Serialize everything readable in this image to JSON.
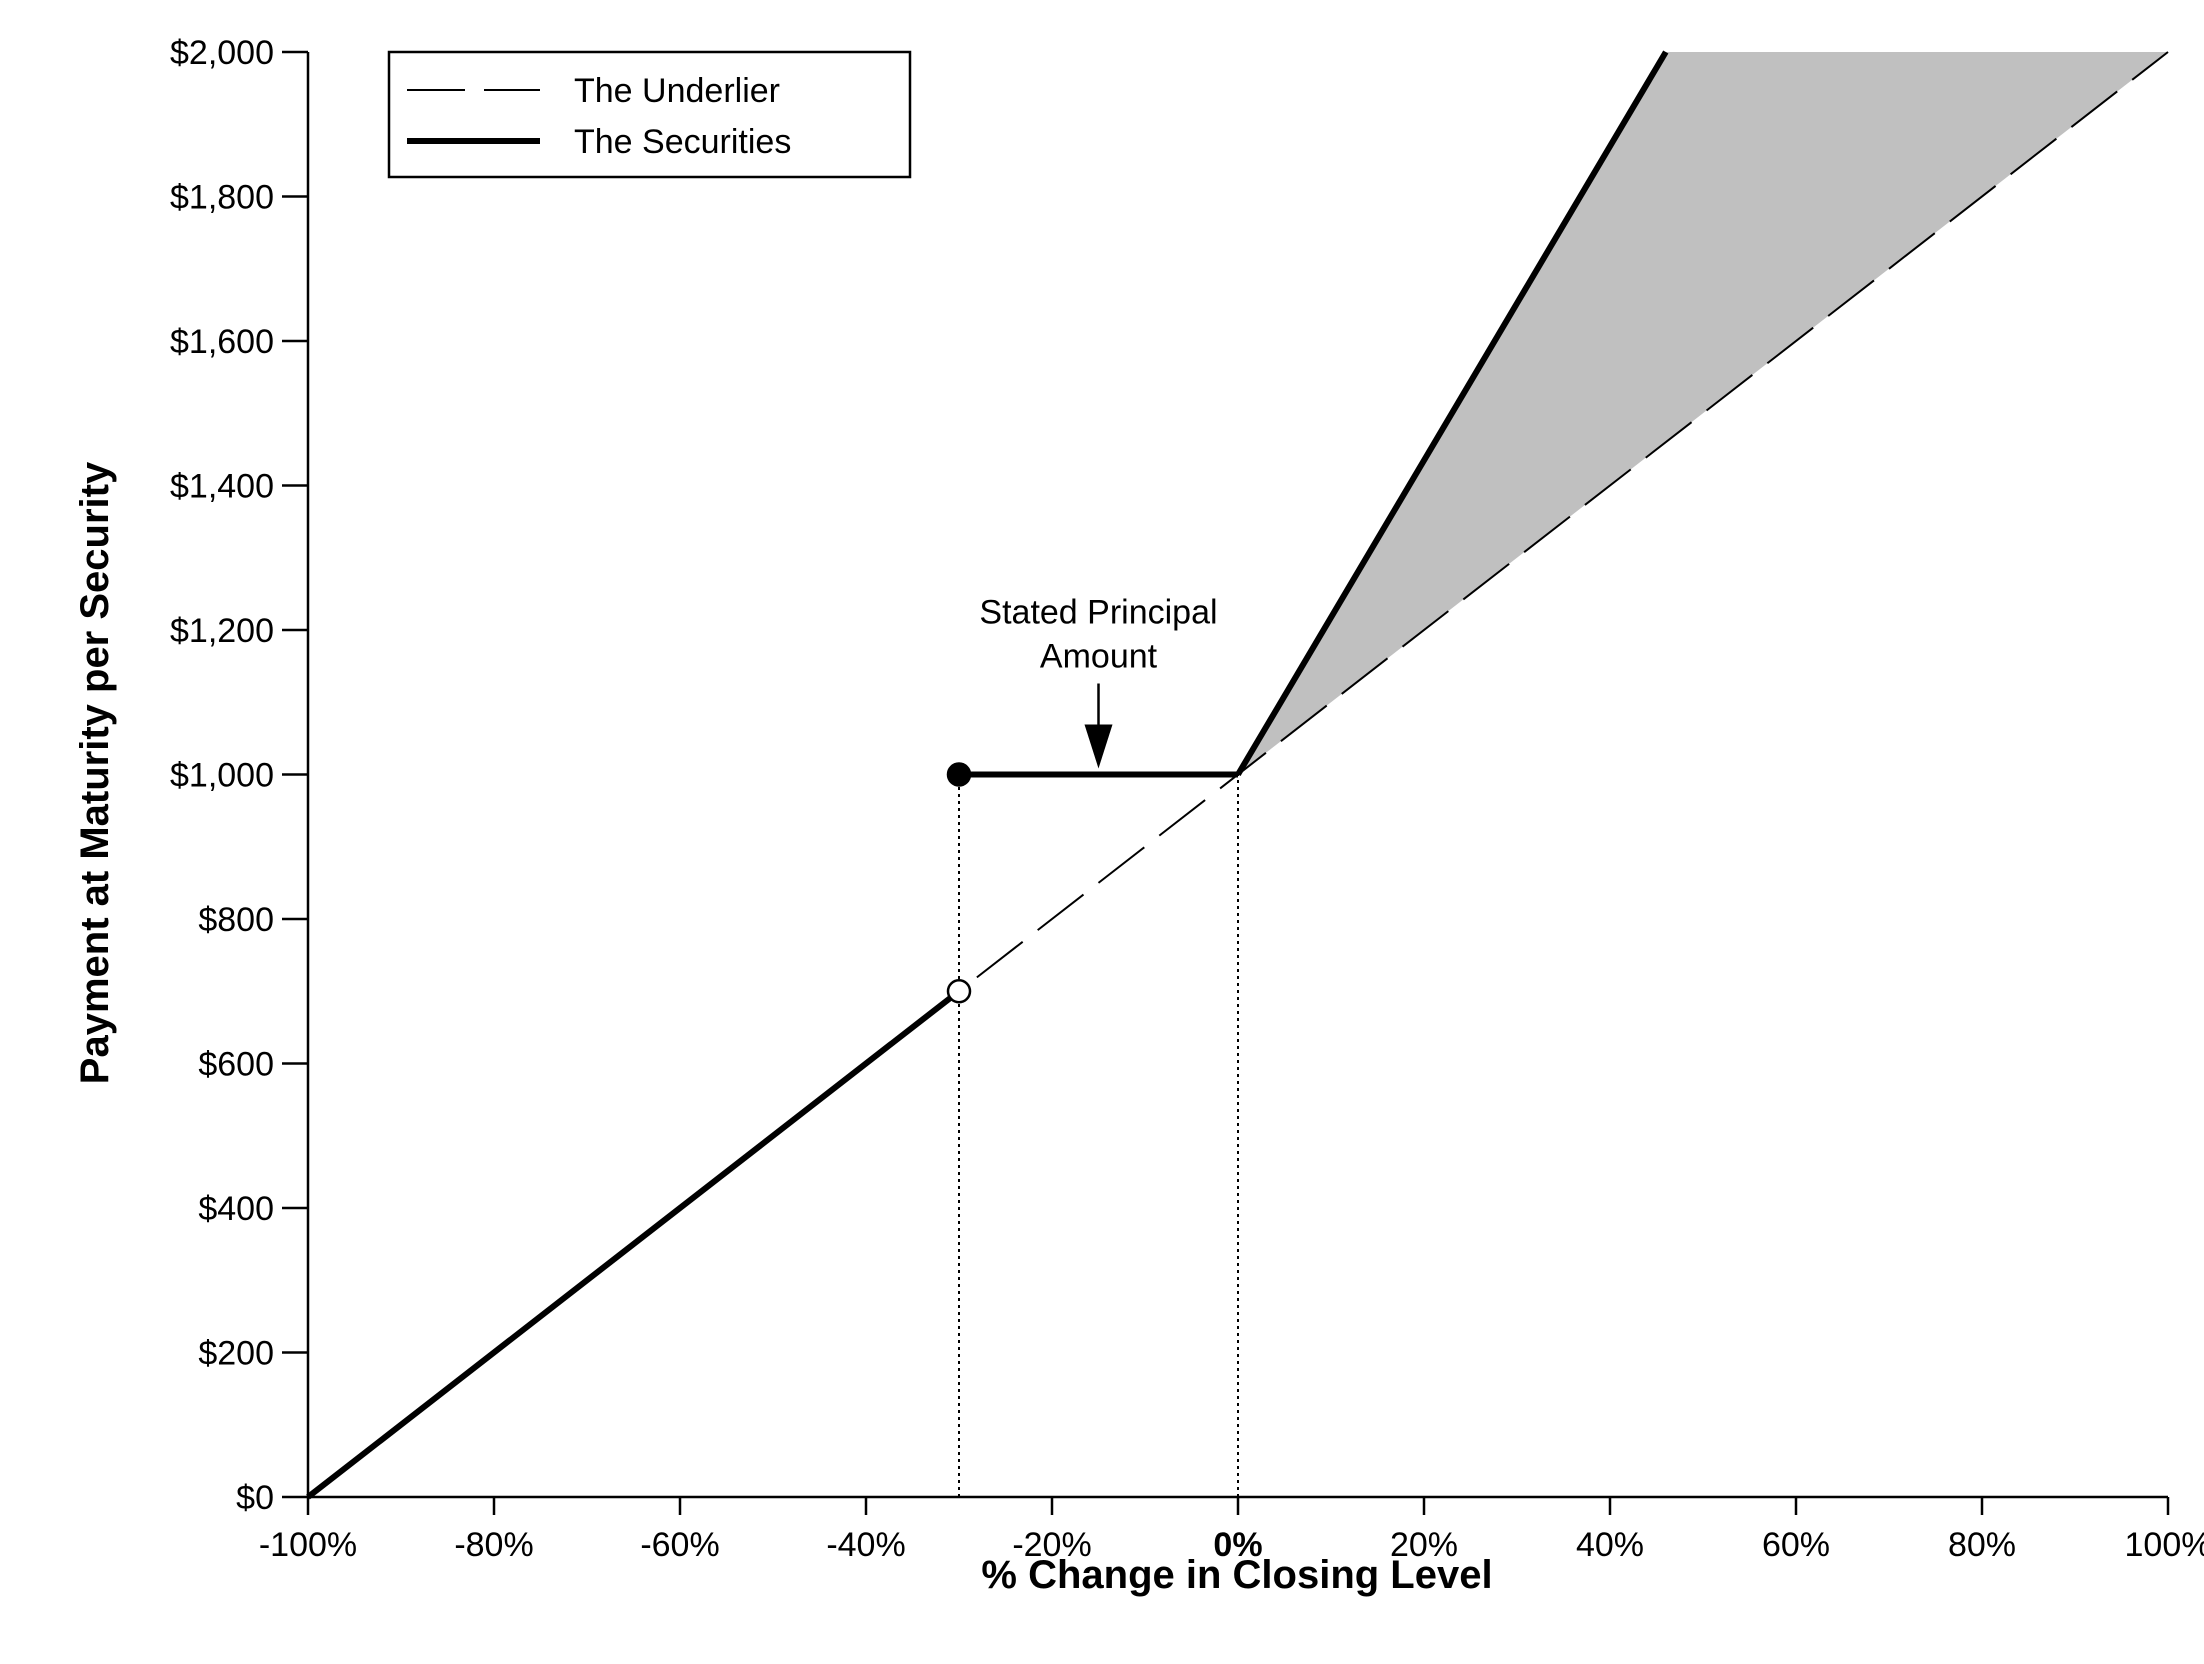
{
  "chart_data": {
    "type": "line",
    "title": "",
    "xlabel": "% Change in Closing Level",
    "ylabel": "Payment at Maturity per Security",
    "xlim": [
      -100,
      100
    ],
    "ylim": [
      0,
      2000
    ],
    "x_ticks": [
      -100,
      -80,
      -60,
      -40,
      -20,
      0,
      20,
      40,
      60,
      80,
      100
    ],
    "x_tick_labels": [
      "-100%",
      "-80%",
      "-60%",
      "-40%",
      "-20%",
      "0%",
      "20%",
      "40%",
      "60%",
      "80%",
      "100%"
    ],
    "x_tick_bold": "0%",
    "y_ticks": [
      0,
      200,
      400,
      600,
      800,
      1000,
      1200,
      1400,
      1600,
      1800,
      2000
    ],
    "y_tick_labels": [
      "$0",
      "$200",
      "$400",
      "$600",
      "$800",
      "$1,000",
      "$1,200",
      "$1,400",
      "$1,600",
      "$1,800",
      "$2,000"
    ],
    "grid": false,
    "legend_position": "top-left",
    "legend": [
      {
        "label": "The Underlier",
        "style": "dashed"
      },
      {
        "label": "The Securities",
        "style": "solid-thick"
      }
    ],
    "series": [
      {
        "name": "The Underlier",
        "style": "dashed",
        "points": [
          {
            "x": -100,
            "y": 0
          },
          {
            "x": 100,
            "y": 2000
          }
        ]
      },
      {
        "name": "The Securities",
        "style": "solid-thick",
        "segments": [
          [
            {
              "x": -100,
              "y": 0
            },
            {
              "x": -30,
              "y": 700
            }
          ],
          [
            {
              "x": -30,
              "y": 1000
            },
            {
              "x": 0,
              "y": 1000
            }
          ],
          [
            {
              "x": 0,
              "y": 1000
            },
            {
              "x": 46,
              "y": 2000
            }
          ]
        ]
      }
    ],
    "markers": [
      {
        "x": -30,
        "y": 1000,
        "fill": "filled"
      },
      {
        "x": -30,
        "y": 700,
        "fill": "open"
      }
    ],
    "reference_lines": [
      {
        "x": -30,
        "y_from": 0,
        "y_to": 1000,
        "style": "dotted"
      },
      {
        "x": 0,
        "y_from": 0,
        "y_to": 1000,
        "style": "dotted"
      }
    ],
    "shaded_region": {
      "color": "#c0c0c0",
      "vertices": [
        {
          "x": 0,
          "y": 1000
        },
        {
          "x": 46,
          "y": 2000
        },
        {
          "x": 100,
          "y": 2000
        }
      ]
    },
    "annotations": [
      {
        "lines": [
          "Stated Principal",
          "Amount"
        ],
        "arrow_to": {
          "x": -15,
          "y": 1000
        }
      }
    ]
  }
}
